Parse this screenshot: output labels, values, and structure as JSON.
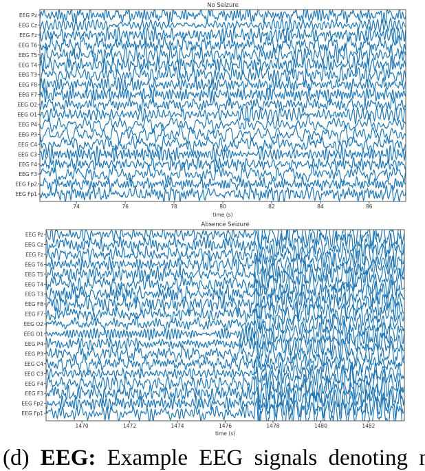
{
  "chart_data": [
    {
      "type": "line",
      "title": "No Seizure",
      "xlabel": "time (s)",
      "xlim": [
        72.5,
        87.5
      ],
      "xticks": [
        74,
        76,
        78,
        80,
        82,
        84,
        86
      ],
      "channels": [
        "EEG Pz",
        "EEG Cz",
        "EEG Fz",
        "EEG T6",
        "EEG T5",
        "EEG T4",
        "EEG T3",
        "EEG F8",
        "EEG F7",
        "EEG O2",
        "EEG O1",
        "EEG P4",
        "EEG P3",
        "EEG C4",
        "EEG C3",
        "EEG F4",
        "EEG F3",
        "EEG Fp2",
        "EEG Fp1"
      ],
      "line_color": "#1f77b4",
      "grid": false
    },
    {
      "type": "line",
      "title": "Absence Seizure",
      "xlabel": "time (s)",
      "xlim": [
        1468.5,
        1483.5
      ],
      "xticks": [
        1470,
        1472,
        1474,
        1476,
        1478,
        1480,
        1482
      ],
      "channels": [
        "EEG Pz",
        "EEG Cz",
        "EEG Fz",
        "EEG T6",
        "EEG T5",
        "EEG T4",
        "EEG T3",
        "EEG F8",
        "EEG F7",
        "EEG O2",
        "EEG O1",
        "EEG P4",
        "EEG P3",
        "EEG C4",
        "EEG C3",
        "EEG F4",
        "EEG F3",
        "EEG Fp2",
        "EEG Fp1"
      ],
      "line_color": "#1f77b4",
      "grid": false
    }
  ],
  "caption": {
    "prefix": "(d)",
    "bold": "EEG:",
    "text": "Example EEG signals denoting no"
  }
}
